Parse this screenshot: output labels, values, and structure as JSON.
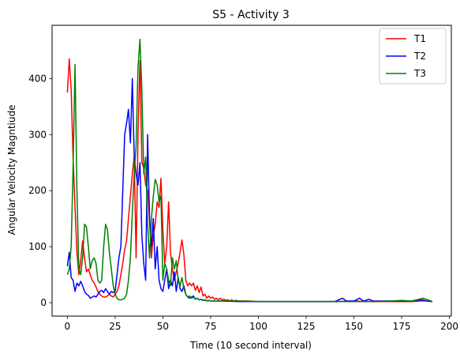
{
  "chart_data": {
    "type": "line",
    "title": "S5 - Activity 3",
    "xlabel": "Time (10 second interval)",
    "ylabel": "Angular Velocity Magntiude",
    "xlim": [
      -8,
      201
    ],
    "ylim": [
      -24,
      495
    ],
    "xticks": [
      0,
      25,
      50,
      75,
      100,
      125,
      150,
      175,
      200
    ],
    "yticks": [
      0,
      100,
      200,
      300,
      400
    ],
    "grid": false,
    "legend_position": "top-right",
    "series": [
      {
        "name": "T1",
        "color": "#ff0000",
        "points": [
          [
            0,
            375
          ],
          [
            1,
            435
          ],
          [
            2,
            380
          ],
          [
            3,
            260
          ],
          [
            4,
            170
          ],
          [
            5,
            90
          ],
          [
            6,
            50
          ],
          [
            7,
            75
          ],
          [
            8,
            110
          ],
          [
            9,
            80
          ],
          [
            10,
            55
          ],
          [
            11,
            60
          ],
          [
            12,
            50
          ],
          [
            13,
            40
          ],
          [
            14,
            35
          ],
          [
            15,
            28
          ],
          [
            16,
            20
          ],
          [
            17,
            15
          ],
          [
            18,
            12
          ],
          [
            19,
            10
          ],
          [
            20,
            10
          ],
          [
            21,
            12
          ],
          [
            22,
            15
          ],
          [
            23,
            12
          ],
          [
            24,
            10
          ],
          [
            25,
            15
          ],
          [
            26,
            20
          ],
          [
            27,
            30
          ],
          [
            28,
            50
          ],
          [
            29,
            70
          ],
          [
            30,
            95
          ],
          [
            31,
            110
          ],
          [
            32,
            150
          ],
          [
            33,
            190
          ],
          [
            34,
            230
          ],
          [
            35,
            260
          ],
          [
            36,
            80
          ],
          [
            37,
            300
          ],
          [
            38,
            432
          ],
          [
            39,
            250
          ],
          [
            40,
            240
          ],
          [
            41,
            210
          ],
          [
            42,
            200
          ],
          [
            43,
            150
          ],
          [
            44,
            80
          ],
          [
            45,
            120
          ],
          [
            46,
            140
          ],
          [
            47,
            180
          ],
          [
            48,
            170
          ],
          [
            49,
            222
          ],
          [
            50,
            130
          ],
          [
            51,
            70
          ],
          [
            52,
            100
          ],
          [
            53,
            180
          ],
          [
            54,
            90
          ],
          [
            55,
            60
          ],
          [
            56,
            40
          ],
          [
            57,
            55
          ],
          [
            58,
            70
          ],
          [
            59,
            90
          ],
          [
            60,
            112
          ],
          [
            61,
            85
          ],
          [
            62,
            40
          ],
          [
            63,
            30
          ],
          [
            64,
            35
          ],
          [
            65,
            30
          ],
          [
            66,
            35
          ],
          [
            67,
            22
          ],
          [
            68,
            30
          ],
          [
            69,
            18
          ],
          [
            70,
            28
          ],
          [
            71,
            12
          ],
          [
            72,
            15
          ],
          [
            73,
            8
          ],
          [
            74,
            12
          ],
          [
            75,
            8
          ],
          [
            76,
            10
          ],
          [
            77,
            6
          ],
          [
            78,
            8
          ],
          [
            79,
            5
          ],
          [
            80,
            8
          ],
          [
            81,
            5
          ],
          [
            82,
            6
          ],
          [
            83,
            4
          ],
          [
            84,
            5
          ],
          [
            85,
            3
          ],
          [
            86,
            5
          ],
          [
            87,
            3
          ],
          [
            88,
            4
          ],
          [
            90,
            3
          ],
          [
            95,
            3
          ],
          [
            100,
            2
          ],
          [
            110,
            2
          ],
          [
            120,
            2
          ],
          [
            130,
            2
          ],
          [
            140,
            2
          ],
          [
            150,
            3
          ],
          [
            160,
            2
          ],
          [
            170,
            2
          ],
          [
            180,
            2
          ],
          [
            185,
            3
          ],
          [
            188,
            3
          ],
          [
            191,
            2
          ]
        ]
      },
      {
        "name": "T2",
        "color": "#0000ff",
        "points": [
          [
            0,
            65
          ],
          [
            1,
            90
          ],
          [
            2,
            45
          ],
          [
            3,
            40
          ],
          [
            4,
            20
          ],
          [
            5,
            35
          ],
          [
            6,
            30
          ],
          [
            7,
            38
          ],
          [
            8,
            30
          ],
          [
            9,
            20
          ],
          [
            10,
            15
          ],
          [
            11,
            13
          ],
          [
            12,
            8
          ],
          [
            13,
            10
          ],
          [
            14,
            12
          ],
          [
            15,
            10
          ],
          [
            16,
            15
          ],
          [
            17,
            20
          ],
          [
            18,
            22
          ],
          [
            19,
            18
          ],
          [
            20,
            25
          ],
          [
            21,
            20
          ],
          [
            22,
            15
          ],
          [
            23,
            20
          ],
          [
            24,
            18
          ],
          [
            25,
            20
          ],
          [
            26,
            50
          ],
          [
            27,
            80
          ],
          [
            28,
            100
          ],
          [
            29,
            200
          ],
          [
            30,
            300
          ],
          [
            31,
            320
          ],
          [
            32,
            345
          ],
          [
            33,
            285
          ],
          [
            34,
            400
          ],
          [
            35,
            260
          ],
          [
            36,
            230
          ],
          [
            37,
            210
          ],
          [
            38,
            250
          ],
          [
            39,
            120
          ],
          [
            40,
            70
          ],
          [
            41,
            40
          ],
          [
            42,
            300
          ],
          [
            43,
            150
          ],
          [
            44,
            100
          ],
          [
            45,
            150
          ],
          [
            46,
            60
          ],
          [
            47,
            100
          ],
          [
            48,
            40
          ],
          [
            49,
            25
          ],
          [
            50,
            20
          ],
          [
            51,
            40
          ],
          [
            52,
            60
          ],
          [
            53,
            25
          ],
          [
            54,
            40
          ],
          [
            55,
            30
          ],
          [
            56,
            55
          ],
          [
            57,
            20
          ],
          [
            58,
            45
          ],
          [
            59,
            25
          ],
          [
            60,
            20
          ],
          [
            61,
            30
          ],
          [
            62,
            15
          ],
          [
            63,
            10
          ],
          [
            64,
            8
          ],
          [
            65,
            10
          ],
          [
            66,
            12
          ],
          [
            67,
            6
          ],
          [
            68,
            8
          ],
          [
            69,
            5
          ],
          [
            70,
            6
          ],
          [
            71,
            4
          ],
          [
            72,
            5
          ],
          [
            73,
            3
          ],
          [
            74,
            4
          ],
          [
            75,
            3
          ],
          [
            80,
            3
          ],
          [
            90,
            2
          ],
          [
            100,
            2
          ],
          [
            110,
            2
          ],
          [
            120,
            2
          ],
          [
            130,
            2
          ],
          [
            140,
            2
          ],
          [
            144,
            8
          ],
          [
            146,
            3
          ],
          [
            150,
            3
          ],
          [
            153,
            8
          ],
          [
            155,
            3
          ],
          [
            158,
            6
          ],
          [
            160,
            3
          ],
          [
            170,
            3
          ],
          [
            180,
            3
          ],
          [
            186,
            5
          ],
          [
            188,
            3
          ],
          [
            191,
            2
          ]
        ]
      },
      {
        "name": "T3",
        "color": "#008000",
        "points": [
          [
            0,
            50
          ],
          [
            1,
            60
          ],
          [
            2,
            100
          ],
          [
            3,
            240
          ],
          [
            4,
            425
          ],
          [
            5,
            200
          ],
          [
            6,
            60
          ],
          [
            7,
            50
          ],
          [
            8,
            80
          ],
          [
            9,
            140
          ],
          [
            10,
            135
          ],
          [
            11,
            100
          ],
          [
            12,
            60
          ],
          [
            13,
            75
          ],
          [
            14,
            80
          ],
          [
            15,
            70
          ],
          [
            16,
            40
          ],
          [
            17,
            35
          ],
          [
            18,
            40
          ],
          [
            19,
            100
          ],
          [
            20,
            140
          ],
          [
            21,
            130
          ],
          [
            22,
            90
          ],
          [
            23,
            60
          ],
          [
            24,
            30
          ],
          [
            25,
            15
          ],
          [
            26,
            8
          ],
          [
            27,
            5
          ],
          [
            28,
            5
          ],
          [
            29,
            6
          ],
          [
            30,
            8
          ],
          [
            31,
            15
          ],
          [
            32,
            40
          ],
          [
            33,
            80
          ],
          [
            34,
            160
          ],
          [
            35,
            230
          ],
          [
            36,
            280
          ],
          [
            37,
            420
          ],
          [
            38,
            470
          ],
          [
            39,
            380
          ],
          [
            40,
            230
          ],
          [
            41,
            260
          ],
          [
            42,
            140
          ],
          [
            43,
            80
          ],
          [
            44,
            150
          ],
          [
            45,
            190
          ],
          [
            46,
            220
          ],
          [
            47,
            210
          ],
          [
            48,
            180
          ],
          [
            49,
            190
          ],
          [
            50,
            40
          ],
          [
            51,
            70
          ],
          [
            52,
            60
          ],
          [
            53,
            40
          ],
          [
            54,
            30
          ],
          [
            55,
            80
          ],
          [
            56,
            60
          ],
          [
            57,
            75
          ],
          [
            58,
            40
          ],
          [
            59,
            30
          ],
          [
            60,
            45
          ],
          [
            61,
            25
          ],
          [
            62,
            15
          ],
          [
            63,
            10
          ],
          [
            64,
            12
          ],
          [
            65,
            8
          ],
          [
            66,
            10
          ],
          [
            67,
            6
          ],
          [
            68,
            8
          ],
          [
            69,
            5
          ],
          [
            70,
            6
          ],
          [
            72,
            4
          ],
          [
            75,
            3
          ],
          [
            80,
            3
          ],
          [
            90,
            3
          ],
          [
            100,
            2
          ],
          [
            110,
            2
          ],
          [
            120,
            2
          ],
          [
            130,
            2
          ],
          [
            140,
            2
          ],
          [
            150,
            2
          ],
          [
            160,
            2
          ],
          [
            170,
            3
          ],
          [
            175,
            4
          ],
          [
            180,
            3
          ],
          [
            183,
            5
          ],
          [
            186,
            8
          ],
          [
            188,
            6
          ],
          [
            191,
            2
          ]
        ]
      }
    ]
  }
}
